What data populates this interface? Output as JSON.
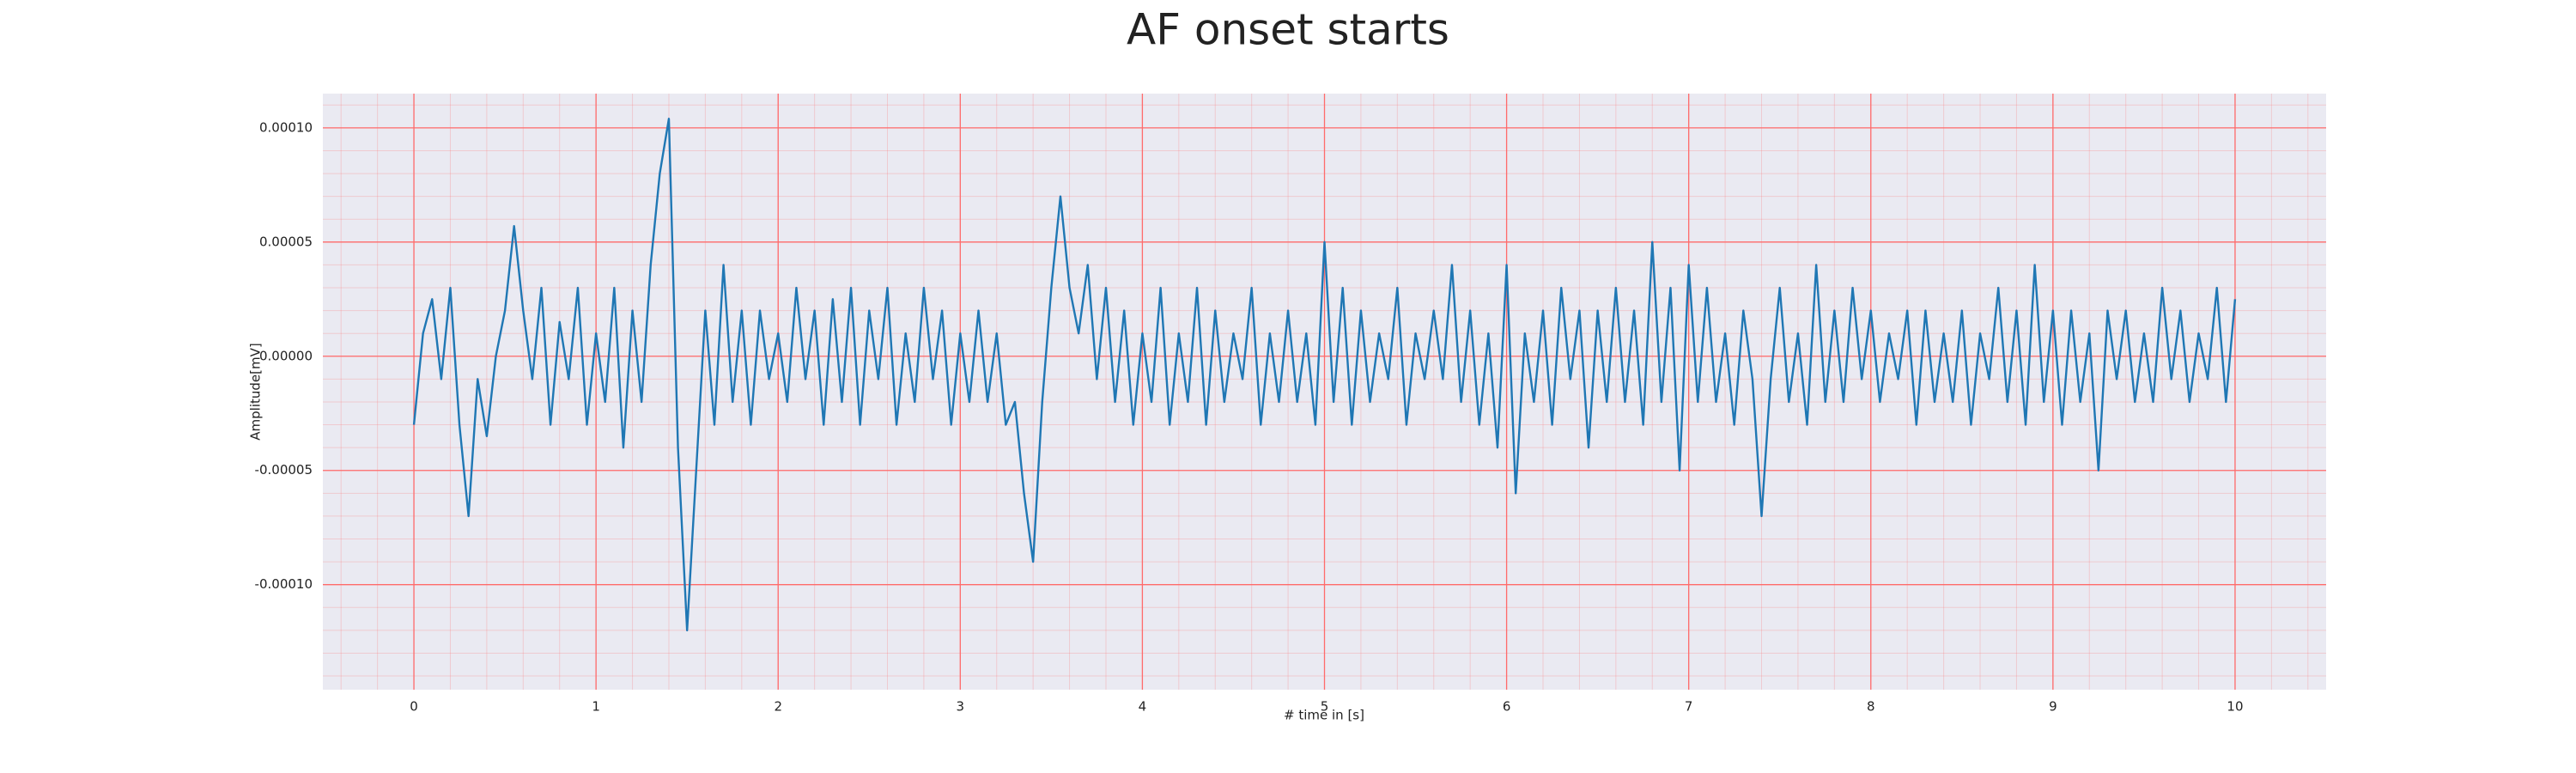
{
  "chart_data": {
    "type": "line",
    "title": "AF onset starts",
    "x_label": "# time in [s]",
    "y_label": "Amplitude[mV]",
    "xlim": [
      -0.5,
      10.5
    ],
    "ylim": [
      -0.000146,
      0.000115
    ],
    "xticks": [
      0,
      1,
      2,
      3,
      4,
      5,
      6,
      7,
      8,
      9,
      10
    ],
    "yticks": [
      {
        "value": -0.0001,
        "label": "-0.00010"
      },
      {
        "value": -5e-05,
        "label": "-0.00005"
      },
      {
        "value": 0,
        "label": "0.00000"
      },
      {
        "value": 5e-05,
        "label": "0.00005"
      },
      {
        "value": 0.0001,
        "label": "0.00010"
      }
    ],
    "grid": true,
    "minor_grid": true,
    "background": "#eaeaf2",
    "grid_color": "#ff6b6b",
    "series": [
      {
        "color": "#1f77b4",
        "x": [
          0,
          0.05,
          0.1,
          0.15,
          0.2,
          0.25,
          0.3,
          0.35,
          0.4,
          0.45,
          0.5,
          0.55,
          0.6,
          0.65,
          0.7,
          0.75,
          0.8,
          0.85,
          0.9,
          0.95,
          1,
          1.05,
          1.1,
          1.15,
          1.2,
          1.25,
          1.3,
          1.35,
          1.4,
          1.45,
          1.5,
          1.55,
          1.6,
          1.65,
          1.7,
          1.75,
          1.8,
          1.85,
          1.9,
          1.95,
          2,
          2.05,
          2.1,
          2.15,
          2.2,
          2.25,
          2.3,
          2.35,
          2.4,
          2.45,
          2.5,
          2.55,
          2.6,
          2.65,
          2.7,
          2.75,
          2.8,
          2.85,
          2.9,
          2.95,
          3,
          3.05,
          3.1,
          3.15,
          3.2,
          3.25,
          3.3,
          3.35,
          3.4,
          3.45,
          3.5,
          3.55,
          3.6,
          3.65,
          3.7,
          3.75,
          3.8,
          3.85,
          3.9,
          3.95,
          4,
          4.05,
          4.1,
          4.15,
          4.2,
          4.25,
          4.3,
          4.35,
          4.4,
          4.45,
          4.5,
          4.55,
          4.6,
          4.65,
          4.7,
          4.75,
          4.8,
          4.85,
          4.9,
          4.95,
          5,
          5.05,
          5.1,
          5.15,
          5.2,
          5.25,
          5.3,
          5.35,
          5.4,
          5.45,
          5.5,
          5.55,
          5.6,
          5.65,
          5.7,
          5.75,
          5.8,
          5.85,
          5.9,
          5.95,
          6,
          6.05,
          6.1,
          6.15,
          6.2,
          6.25,
          6.3,
          6.35,
          6.4,
          6.45,
          6.5,
          6.55,
          6.6,
          6.65,
          6.7,
          6.75,
          6.8,
          6.85,
          6.9,
          6.95,
          7,
          7.05,
          7.1,
          7.15,
          7.2,
          7.25,
          7.3,
          7.35,
          7.4,
          7.45,
          7.5,
          7.55,
          7.6,
          7.65,
          7.7,
          7.75,
          7.8,
          7.85,
          7.9,
          7.95,
          8,
          8.05,
          8.1,
          8.15,
          8.2,
          8.25,
          8.3,
          8.35,
          8.4,
          8.45,
          8.5,
          8.55,
          8.6,
          8.65,
          8.7,
          8.75,
          8.8,
          8.85,
          8.9,
          8.95,
          9,
          9.05,
          9.1,
          9.15,
          9.2,
          9.25,
          9.3,
          9.35,
          9.4,
          9.45,
          9.5,
          9.55,
          9.6,
          9.65,
          9.7,
          9.75,
          9.8,
          9.85,
          9.9,
          9.95,
          10
        ],
        "values": [
          -3e-05,
          1e-05,
          2.5e-05,
          -1e-05,
          3e-05,
          -3e-05,
          -7e-05,
          -1e-05,
          -3.5e-05,
          0,
          2e-05,
          5.7e-05,
          2e-05,
          -1e-05,
          3e-05,
          -3e-05,
          1.5e-05,
          -1e-05,
          3e-05,
          -3e-05,
          1e-05,
          -2e-05,
          3e-05,
          -4e-05,
          2e-05,
          -2e-05,
          4e-05,
          8e-05,
          0.000104,
          -4e-05,
          -0.00012,
          -5e-05,
          2e-05,
          -3e-05,
          4e-05,
          -2e-05,
          2e-05,
          -3e-05,
          2e-05,
          -1e-05,
          1e-05,
          -2e-05,
          3e-05,
          -1e-05,
          2e-05,
          -3e-05,
          2.5e-05,
          -2e-05,
          3e-05,
          -3e-05,
          2e-05,
          -1e-05,
          3e-05,
          -3e-05,
          1e-05,
          -2e-05,
          3e-05,
          -1e-05,
          2e-05,
          -3e-05,
          1e-05,
          -2e-05,
          2e-05,
          -2e-05,
          1e-05,
          -3e-05,
          -2e-05,
          -6e-05,
          -9e-05,
          -2e-05,
          3e-05,
          7e-05,
          3e-05,
          1e-05,
          4e-05,
          -1e-05,
          3e-05,
          -2e-05,
          2e-05,
          -3e-05,
          1e-05,
          -2e-05,
          3e-05,
          -3e-05,
          1e-05,
          -2e-05,
          3e-05,
          -3e-05,
          2e-05,
          -2e-05,
          1e-05,
          -1e-05,
          3e-05,
          -3e-05,
          1e-05,
          -2e-05,
          2e-05,
          -2e-05,
          1e-05,
          -3e-05,
          5e-05,
          -2e-05,
          3e-05,
          -3e-05,
          2e-05,
          -2e-05,
          1e-05,
          -1e-05,
          3e-05,
          -3e-05,
          1e-05,
          -1e-05,
          2e-05,
          -1e-05,
          4e-05,
          -2e-05,
          2e-05,
          -3e-05,
          1e-05,
          -4e-05,
          4e-05,
          -6e-05,
          1e-05,
          -2e-05,
          2e-05,
          -3e-05,
          3e-05,
          -1e-05,
          2e-05,
          -4e-05,
          2e-05,
          -2e-05,
          3e-05,
          -2e-05,
          2e-05,
          -3e-05,
          5e-05,
          -2e-05,
          3e-05,
          -5e-05,
          4e-05,
          -2e-05,
          3e-05,
          -2e-05,
          1e-05,
          -3e-05,
          2e-05,
          -1e-05,
          -7e-05,
          -1e-05,
          3e-05,
          -2e-05,
          1e-05,
          -3e-05,
          4e-05,
          -2e-05,
          2e-05,
          -2e-05,
          3e-05,
          -1e-05,
          2e-05,
          -2e-05,
          1e-05,
          -1e-05,
          2e-05,
          -3e-05,
          2e-05,
          -2e-05,
          1e-05,
          -2e-05,
          2e-05,
          -3e-05,
          1e-05,
          -1e-05,
          3e-05,
          -2e-05,
          2e-05,
          -3e-05,
          4e-05,
          -2e-05,
          2e-05,
          -3e-05,
          2e-05,
          -2e-05,
          1e-05,
          -5e-05,
          2e-05,
          -1e-05,
          2e-05,
          -2e-05,
          1e-05,
          -2e-05,
          3e-05,
          -1e-05,
          2e-05,
          -2e-05,
          1e-05,
          -1e-05,
          3e-05,
          -2e-05,
          2.5e-05
        ]
      }
    ]
  }
}
